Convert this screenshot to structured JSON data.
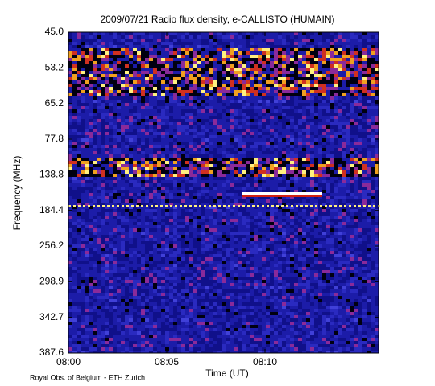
{
  "chart_data": {
    "type": "spectrogram",
    "title": "2009/07/21  Radio flux density, e-CALLISTO (HUMAIN)",
    "x_label": "Time (UT)",
    "y_label": "Frequency (MHz)",
    "xticks": [
      "08:00",
      "08:05",
      "08:10"
    ],
    "yticks": [
      {
        "value": 45,
        "label": "45.0"
      },
      53.2,
      65.2,
      77.8,
      138.8,
      184.4,
      256.2,
      298.9,
      342.7,
      387.6
    ],
    "footer": "Royal Obs. of Belgium - ETH Zurich"
  }
}
